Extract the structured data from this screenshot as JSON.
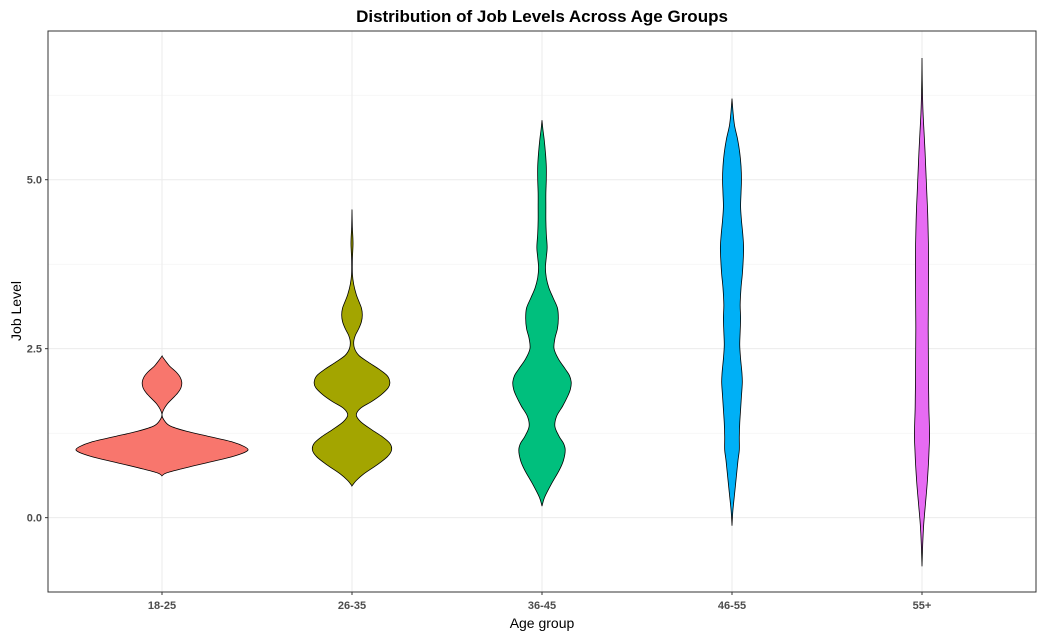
{
  "chart_data": {
    "type": "violin",
    "title": "Distribution of Job Levels Across Age Groups",
    "xlabel": "Age group",
    "ylabel": "Job Level",
    "categories": [
      "18-25",
      "26-35",
      "36-45",
      "46-55",
      "55+"
    ],
    "y_ticks": [
      0.0,
      2.5,
      5.0
    ],
    "y_tick_labels": [
      "0.0",
      "2.5",
      "5.0"
    ],
    "ylim": [
      -1.1,
      7.2
    ],
    "grid": true,
    "legend": "none",
    "series": [
      {
        "category": "18-25",
        "color": "#F8766D",
        "profile": [
          [
            0.62,
            0.0
          ],
          [
            0.66,
            0.05
          ],
          [
            0.72,
            0.22
          ],
          [
            0.8,
            0.48
          ],
          [
            0.88,
            0.75
          ],
          [
            0.95,
            0.93
          ],
          [
            1.0,
            1.0
          ],
          [
            1.05,
            0.96
          ],
          [
            1.12,
            0.82
          ],
          [
            1.2,
            0.55
          ],
          [
            1.28,
            0.28
          ],
          [
            1.36,
            0.09
          ],
          [
            1.45,
            0.02
          ],
          [
            1.52,
            0.0
          ],
          [
            1.6,
            0.02
          ],
          [
            1.68,
            0.06
          ],
          [
            1.76,
            0.12
          ],
          [
            1.84,
            0.18
          ],
          [
            1.92,
            0.22
          ],
          [
            2.0,
            0.23
          ],
          [
            2.08,
            0.21
          ],
          [
            2.16,
            0.16
          ],
          [
            2.24,
            0.09
          ],
          [
            2.32,
            0.04
          ],
          [
            2.39,
            0.0
          ]
        ]
      },
      {
        "category": "26-35",
        "color": "#A3A500",
        "profile": [
          [
            0.47,
            0.0
          ],
          [
            0.55,
            0.05
          ],
          [
            0.65,
            0.14
          ],
          [
            0.78,
            0.29
          ],
          [
            0.9,
            0.41
          ],
          [
            1.0,
            0.46
          ],
          [
            1.1,
            0.44
          ],
          [
            1.2,
            0.35
          ],
          [
            1.3,
            0.23
          ],
          [
            1.42,
            0.1
          ],
          [
            1.52,
            0.05
          ],
          [
            1.62,
            0.1
          ],
          [
            1.72,
            0.23
          ],
          [
            1.82,
            0.34
          ],
          [
            1.92,
            0.42
          ],
          [
            2.0,
            0.44
          ],
          [
            2.1,
            0.41
          ],
          [
            2.2,
            0.31
          ],
          [
            2.3,
            0.19
          ],
          [
            2.4,
            0.08
          ],
          [
            2.5,
            0.03
          ],
          [
            2.6,
            0.02
          ],
          [
            2.7,
            0.04
          ],
          [
            2.8,
            0.08
          ],
          [
            2.9,
            0.11
          ],
          [
            3.0,
            0.12
          ],
          [
            3.1,
            0.11
          ],
          [
            3.2,
            0.08
          ],
          [
            3.3,
            0.05
          ],
          [
            3.45,
            0.02
          ],
          [
            3.6,
            0.005
          ],
          [
            3.8,
            0.004
          ],
          [
            3.95,
            0.009
          ],
          [
            4.05,
            0.012
          ],
          [
            4.15,
            0.01
          ],
          [
            4.3,
            0.004
          ],
          [
            4.56,
            0.0
          ]
        ]
      },
      {
        "category": "36-45",
        "color": "#00BF7D",
        "profile": [
          [
            0.17,
            0.0
          ],
          [
            0.3,
            0.03
          ],
          [
            0.5,
            0.11
          ],
          [
            0.7,
            0.2
          ],
          [
            0.85,
            0.25
          ],
          [
            1.0,
            0.27
          ],
          [
            1.1,
            0.25
          ],
          [
            1.2,
            0.2
          ],
          [
            1.35,
            0.15
          ],
          [
            1.5,
            0.17
          ],
          [
            1.65,
            0.24
          ],
          [
            1.8,
            0.3
          ],
          [
            1.9,
            0.33
          ],
          [
            2.0,
            0.34
          ],
          [
            2.1,
            0.32
          ],
          [
            2.2,
            0.27
          ],
          [
            2.35,
            0.19
          ],
          [
            2.5,
            0.14
          ],
          [
            2.65,
            0.15
          ],
          [
            2.8,
            0.18
          ],
          [
            2.95,
            0.19
          ],
          [
            3.1,
            0.18
          ],
          [
            3.25,
            0.13
          ],
          [
            3.4,
            0.08
          ],
          [
            3.55,
            0.05
          ],
          [
            3.7,
            0.04
          ],
          [
            3.85,
            0.05
          ],
          [
            4.0,
            0.06
          ],
          [
            4.2,
            0.05
          ],
          [
            4.4,
            0.045
          ],
          [
            4.6,
            0.045
          ],
          [
            4.8,
            0.045
          ],
          [
            5.0,
            0.05
          ],
          [
            5.2,
            0.05
          ],
          [
            5.4,
            0.04
          ],
          [
            5.6,
            0.025
          ],
          [
            5.75,
            0.01
          ],
          [
            5.88,
            0.0
          ]
        ]
      },
      {
        "category": "46-55",
        "color": "#00B0F6",
        "profile": [
          [
            -0.12,
            0.0
          ],
          [
            0.1,
            0.01
          ],
          [
            0.35,
            0.03
          ],
          [
            0.6,
            0.05
          ],
          [
            0.85,
            0.07
          ],
          [
            1.0,
            0.085
          ],
          [
            1.2,
            0.085
          ],
          [
            1.4,
            0.09
          ],
          [
            1.6,
            0.1
          ],
          [
            1.8,
            0.11
          ],
          [
            2.0,
            0.12
          ],
          [
            2.15,
            0.115
          ],
          [
            2.35,
            0.1
          ],
          [
            2.55,
            0.09
          ],
          [
            2.75,
            0.095
          ],
          [
            2.95,
            0.1
          ],
          [
            3.15,
            0.095
          ],
          [
            3.4,
            0.105
          ],
          [
            3.6,
            0.12
          ],
          [
            3.8,
            0.13
          ],
          [
            4.0,
            0.135
          ],
          [
            4.2,
            0.125
          ],
          [
            4.4,
            0.11
          ],
          [
            4.6,
            0.1
          ],
          [
            4.8,
            0.105
          ],
          [
            5.0,
            0.11
          ],
          [
            5.2,
            0.105
          ],
          [
            5.4,
            0.09
          ],
          [
            5.6,
            0.065
          ],
          [
            5.8,
            0.03
          ],
          [
            6.0,
            0.012
          ],
          [
            6.2,
            0.0
          ]
        ]
      },
      {
        "category": "55+",
        "color": "#E76BF3",
        "profile": [
          [
            -0.72,
            0.0
          ],
          [
            -0.4,
            0.008
          ],
          [
            -0.1,
            0.02
          ],
          [
            0.2,
            0.04
          ],
          [
            0.5,
            0.06
          ],
          [
            0.8,
            0.075
          ],
          [
            1.0,
            0.082
          ],
          [
            1.2,
            0.088
          ],
          [
            1.4,
            0.085
          ],
          [
            1.6,
            0.08
          ],
          [
            1.8,
            0.078
          ],
          [
            2.0,
            0.076
          ],
          [
            2.2,
            0.075
          ],
          [
            2.4,
            0.074
          ],
          [
            2.6,
            0.073
          ],
          [
            2.8,
            0.072
          ],
          [
            3.0,
            0.073
          ],
          [
            3.2,
            0.074
          ],
          [
            3.4,
            0.075
          ],
          [
            3.6,
            0.076
          ],
          [
            3.8,
            0.076
          ],
          [
            4.0,
            0.075
          ],
          [
            4.2,
            0.072
          ],
          [
            4.5,
            0.066
          ],
          [
            4.8,
            0.056
          ],
          [
            5.1,
            0.046
          ],
          [
            5.4,
            0.036
          ],
          [
            5.7,
            0.024
          ],
          [
            6.0,
            0.012
          ],
          [
            6.3,
            0.005
          ],
          [
            6.55,
            0.002
          ],
          [
            6.8,
            0.0
          ]
        ]
      }
    ]
  }
}
